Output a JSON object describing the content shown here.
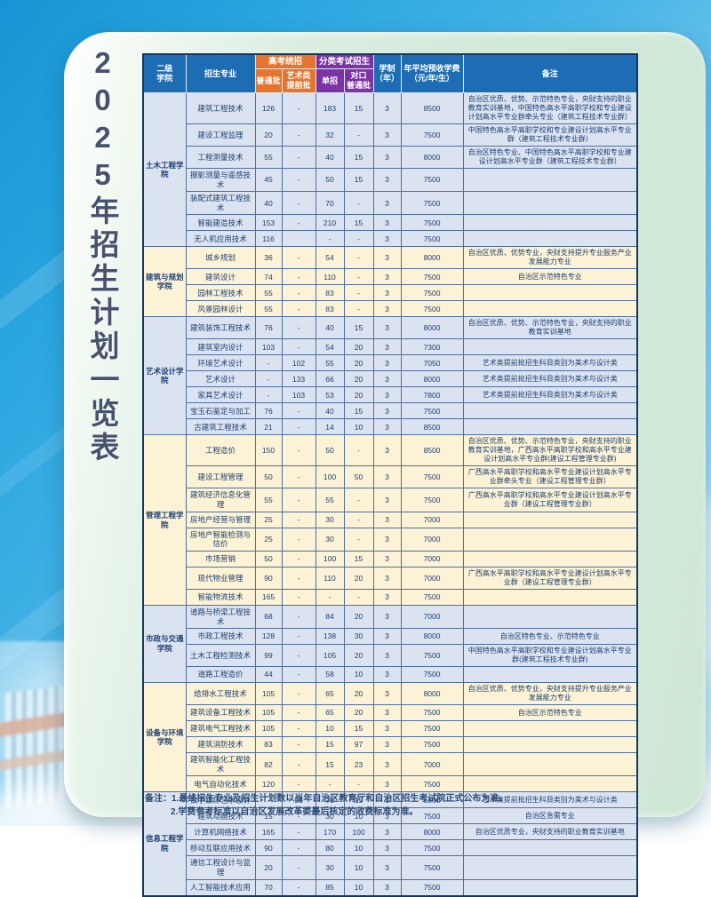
{
  "page_title": "2025年招生计划一览表",
  "colors": {
    "header_blue": "#1e6db4",
    "gaokao_orange": "#e5752d",
    "fenlei_purple": "#7c33a6",
    "row_blue": "#dbe3f1",
    "row_cream": "#fcf3d6",
    "panel_green": "#d2e9da",
    "sky_blue": "#2aa6e0"
  },
  "table": {
    "header": {
      "college": "二级\n学院",
      "major": "招生专业",
      "gaokao_group": "高考统招",
      "putong": "普通批",
      "yishu": "艺术类\n提前批",
      "fenlei_group": "分类考试招生",
      "danzhao": "单招",
      "duikou": "对口\n普通批",
      "xuezhi": "学制\n（年）",
      "fee": "年平均预收学费\n（元/年/生）",
      "remark": "备注"
    },
    "sections": [
      {
        "college": "土木工程学院",
        "tone": "blue",
        "rows": [
          {
            "major": "建筑工程技术",
            "putong": "126",
            "yishu": "-",
            "danzhao": "183",
            "duikou": "15",
            "years": "3",
            "fee": "8500",
            "remark": "自治区优质、优势、示范特色专业，央财支持的职业教育实训基地，中国特色高水平高职学校和专业建设计划高水平专业群牵头专业（建筑工程技术专业群）"
          },
          {
            "major": "建设工程监理",
            "putong": "20",
            "yishu": "-",
            "danzhao": "32",
            "duikou": "-",
            "years": "3",
            "fee": "7500",
            "remark": "中国特色高水平高职学校和专业建设计划高水平专业群（建筑工程技术专业群）"
          },
          {
            "major": "工程测量技术",
            "putong": "55",
            "yishu": "-",
            "danzhao": "40",
            "duikou": "15",
            "years": "3",
            "fee": "8000",
            "remark": "自治区特色专业、中国特色高水平高职学校和专业建设计划高水平专业群（建筑工程技术专业群）"
          },
          {
            "major": "摄影测量与遥感技术",
            "putong": "45",
            "yishu": "-",
            "danzhao": "50",
            "duikou": "15",
            "years": "3",
            "fee": "7500",
            "remark": ""
          },
          {
            "major": "装配式建筑工程技术",
            "putong": "40",
            "yishu": "-",
            "danzhao": "70",
            "duikou": "-",
            "years": "3",
            "fee": "7500",
            "remark": ""
          },
          {
            "major": "智能建造技术",
            "putong": "153",
            "yishu": "-",
            "danzhao": "210",
            "duikou": "15",
            "years": "3",
            "fee": "7500",
            "remark": ""
          },
          {
            "major": "无人机应用技术",
            "putong": "116",
            "yishu": "",
            "danzhao": "-",
            "duikou": "-",
            "years": "3",
            "fee": "7500",
            "remark": ""
          }
        ]
      },
      {
        "college": "建筑与规划学院",
        "tone": "cream",
        "rows": [
          {
            "major": "城乡规划",
            "putong": "36",
            "yishu": "-",
            "danzhao": "54",
            "duikou": "-",
            "years": "3",
            "fee": "8000",
            "remark": "自治区优质、优势专业，央财支持提升专业服务产业发展能力专业"
          },
          {
            "major": "建筑设计",
            "putong": "74",
            "yishu": "-",
            "danzhao": "110",
            "duikou": "-",
            "years": "3",
            "fee": "7500",
            "remark": "自治区示范特色专业"
          },
          {
            "major": "园林工程技术",
            "putong": "55",
            "yishu": "-",
            "danzhao": "83",
            "duikou": "-",
            "years": "3",
            "fee": "7500",
            "remark": ""
          },
          {
            "major": "风景园林设计",
            "putong": "55",
            "yishu": "-",
            "danzhao": "83",
            "duikou": "-",
            "years": "3",
            "fee": "7500",
            "remark": ""
          }
        ]
      },
      {
        "college": "艺术设计学院",
        "tone": "blue",
        "rows": [
          {
            "major": "建筑装饰工程技术",
            "putong": "76",
            "yishu": "-",
            "danzhao": "40",
            "duikou": "15",
            "years": "3",
            "fee": "8000",
            "remark": "自治区优质、优势、示范特色专业，央财支持的职业教育实训基地"
          },
          {
            "major": "建筑室内设计",
            "putong": "103",
            "yishu": "-",
            "danzhao": "54",
            "duikou": "20",
            "years": "3",
            "fee": "7300",
            "remark": ""
          },
          {
            "major": "环境艺术设计",
            "putong": "-",
            "yishu": "102",
            "danzhao": "55",
            "duikou": "20",
            "years": "3",
            "fee": "7050",
            "remark": "艺术类提前批招生科目类别为美术与设计类"
          },
          {
            "major": "艺术设计",
            "putong": "-",
            "yishu": "133",
            "danzhao": "66",
            "duikou": "20",
            "years": "3",
            "fee": "8000",
            "remark": "艺术类提前批招生科目类别为美术与设计类"
          },
          {
            "major": "家具艺术设计",
            "putong": "-",
            "yishu": "103",
            "danzhao": "53",
            "duikou": "20",
            "years": "3",
            "fee": "7800",
            "remark": "艺术类提前批招生科目类别为美术与设计类"
          },
          {
            "major": "宝玉石鉴定与加工",
            "putong": "76",
            "yishu": "-",
            "danzhao": "40",
            "duikou": "15",
            "years": "3",
            "fee": "7500",
            "remark": ""
          },
          {
            "major": "古建筑工程技术",
            "putong": "21",
            "yishu": "-",
            "danzhao": "14",
            "duikou": "10",
            "years": "3",
            "fee": "8500",
            "remark": ""
          }
        ]
      },
      {
        "college": "管理工程学院",
        "tone": "cream",
        "rows": [
          {
            "major": "工程造价",
            "putong": "150",
            "yishu": "-",
            "danzhao": "50",
            "duikou": "-",
            "years": "3",
            "fee": "8500",
            "remark": "自治区优质、优势、示范特色专业，央财支持的职业教育实训基地，广西高水平高职学校和高水平专业建设计划高水平专业群(建设工程管理专业群)"
          },
          {
            "major": "建设工程管理",
            "putong": "50",
            "yishu": "-",
            "danzhao": "100",
            "duikou": "50",
            "years": "3",
            "fee": "7500",
            "remark": "广西高水平高职学校和高水平专业建设计划高水平专业群牵头专业（建设工程管理专业群）"
          },
          {
            "major": "建筑经济信息化管理",
            "putong": "55",
            "yishu": "-",
            "danzhao": "55",
            "duikou": "-",
            "years": "3",
            "fee": "7500",
            "remark": "广西高水平高职学校和高水平专业建设计划高水平专业群（建设工程管理专业群）"
          },
          {
            "major": "房地产经营与管理",
            "putong": "25",
            "yishu": "-",
            "danzhao": "30",
            "duikou": "-",
            "years": "3",
            "fee": "7000",
            "remark": ""
          },
          {
            "major": "房地产智能检测与估价",
            "putong": "25",
            "yishu": "-",
            "danzhao": "30",
            "duikou": "-",
            "years": "3",
            "fee": "7000",
            "remark": ""
          },
          {
            "major": "市场营销",
            "putong": "50",
            "yishu": "-",
            "danzhao": "100",
            "duikou": "15",
            "years": "3",
            "fee": "7000",
            "remark": ""
          },
          {
            "major": "现代物业管理",
            "putong": "90",
            "yishu": "-",
            "danzhao": "110",
            "duikou": "20",
            "years": "3",
            "fee": "7000",
            "remark": "广西高水平高职学校和高水平专业建设计划高水平专业群（建设工程管理专业群）"
          },
          {
            "major": "智能物流技术",
            "putong": "165",
            "yishu": "-",
            "danzhao": "-",
            "duikou": "-",
            "years": "3",
            "fee": "7500",
            "remark": ""
          }
        ]
      },
      {
        "college": "市政与交通学院",
        "tone": "blue",
        "rows": [
          {
            "major": "道路与桥梁工程技术",
            "putong": "68",
            "yishu": "-",
            "danzhao": "84",
            "duikou": "20",
            "years": "3",
            "fee": "7000",
            "remark": ""
          },
          {
            "major": "市政工程技术",
            "putong": "128",
            "yishu": "-",
            "danzhao": "138",
            "duikou": "30",
            "years": "3",
            "fee": "8000",
            "remark": "自治区特色专业、示范特色专业"
          },
          {
            "major": "土木工程检测技术",
            "putong": "99",
            "yishu": "-",
            "danzhao": "105",
            "duikou": "20",
            "years": "3",
            "fee": "7500",
            "remark": "中国特色高水平高职学校和专业建设计划高水平专业群(建筑工程技术专业群)"
          },
          {
            "major": "道路工程造价",
            "putong": "44",
            "yishu": "-",
            "danzhao": "58",
            "duikou": "10",
            "years": "3",
            "fee": "7500",
            "remark": ""
          }
        ]
      },
      {
        "college": "设备与环境学院",
        "tone": "cream",
        "rows": [
          {
            "major": "给排水工程技术",
            "putong": "105",
            "yishu": "-",
            "danzhao": "65",
            "duikou": "20",
            "years": "3",
            "fee": "8000",
            "remark": "自治区优质、优势专业，央财支持提升专业服务产业发展能力专业"
          },
          {
            "major": "建筑设备工程技术",
            "putong": "105",
            "yishu": "-",
            "danzhao": "65",
            "duikou": "20",
            "years": "3",
            "fee": "7500",
            "remark": "自治区示范特色专业"
          },
          {
            "major": "建筑电气工程技术",
            "putong": "105",
            "yishu": "-",
            "danzhao": "10",
            "duikou": "15",
            "years": "3",
            "fee": "7500",
            "remark": ""
          },
          {
            "major": "建筑消防技术",
            "putong": "83",
            "yishu": "-",
            "danzhao": "15",
            "duikou": "97",
            "years": "3",
            "fee": "7500",
            "remark": ""
          },
          {
            "major": "建筑智能化工程技术",
            "putong": "82",
            "yishu": "-",
            "danzhao": "15",
            "duikou": "23",
            "years": "3",
            "fee": "7000",
            "remark": ""
          },
          {
            "major": "电气自动化技术",
            "putong": "120",
            "yishu": "-",
            "danzhao": "-",
            "duikou": "-",
            "years": "3",
            "fee": "7500",
            "remark": ""
          }
        ]
      },
      {
        "college": "信息工程学院",
        "tone": "blue",
        "rows": [
          {
            "major": "数字媒体艺术设计",
            "putong": "-",
            "yishu": "95",
            "danzhao": "70",
            "duikou": "15",
            "years": "3",
            "fee": "6800",
            "remark": "艺术类提前批招生科目类别为美术与设计类"
          },
          {
            "major": "建筑动画技术",
            "putong": "15",
            "yishu": "-",
            "danzhao": "30",
            "duikou": "10",
            "years": "3",
            "fee": "7500",
            "remark": "自治区急需专业"
          },
          {
            "major": "计算机网络技术",
            "putong": "165",
            "yishu": "-",
            "danzhao": "170",
            "duikou": "100",
            "years": "3",
            "fee": "8000",
            "remark": "自治区优质专业，央财支持的职业教育实训基地"
          },
          {
            "major": "移动互联应用技术",
            "putong": "90",
            "yishu": "-",
            "danzhao": "80",
            "duikou": "10",
            "years": "3",
            "fee": "7500",
            "remark": ""
          },
          {
            "major": "通信工程设计与监理",
            "putong": "20",
            "yishu": "-",
            "danzhao": "30",
            "duikou": "10",
            "years": "3",
            "fee": "7500",
            "remark": ""
          },
          {
            "major": "人工智能技术应用",
            "putong": "70",
            "yishu": "-",
            "danzhao": "85",
            "duikou": "10",
            "years": "3",
            "fee": "7500",
            "remark": ""
          }
        ]
      }
    ]
  },
  "notes": {
    "line1": "备注：1.最终招生专业及招生计划数以当年自治区教育厅和自治区招生考试院正式公布为准。",
    "line2": "2.学费参考标准以自治区发展改革委最后核定的收费标准为准。"
  }
}
